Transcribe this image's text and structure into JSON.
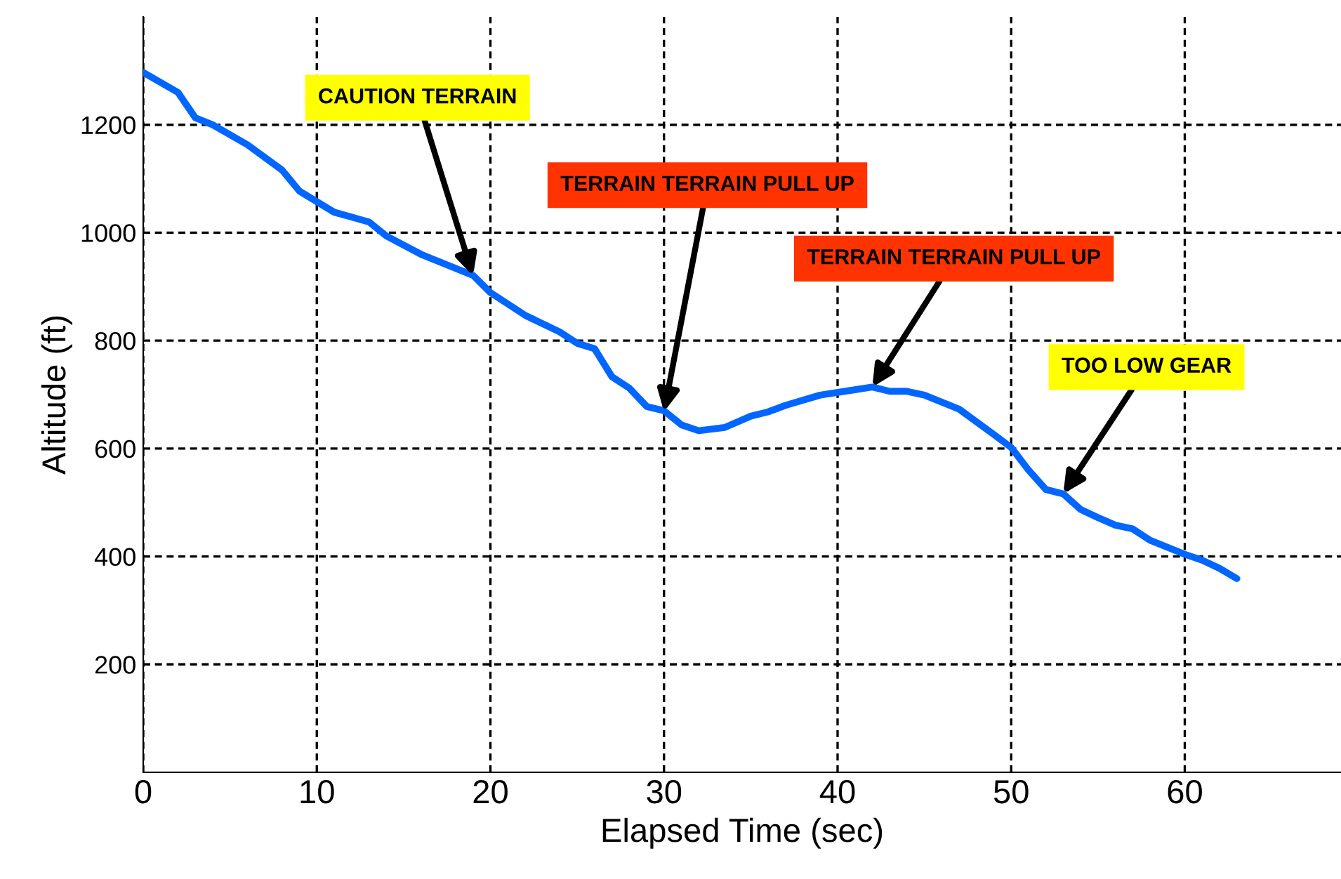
{
  "chart_data": {
    "type": "line",
    "xlabel": "Elapsed Time (sec)",
    "ylabel": "Altitude (ft)",
    "x": [
      0,
      2,
      3,
      4,
      6,
      8,
      9,
      11,
      13,
      14,
      16,
      19,
      20,
      22,
      24,
      25,
      26,
      27,
      28,
      29,
      30,
      31,
      32,
      33.5,
      35,
      36,
      37,
      39,
      41,
      42,
      43,
      44,
      45,
      47,
      49,
      50,
      51,
      52,
      53,
      54,
      55,
      56,
      57,
      58,
      59,
      60,
      61,
      62,
      63
    ],
    "series": [
      {
        "color": "#0066ff",
        "values": [
          1297,
          1260,
          1213,
          1200,
          1163,
          1116,
          1077,
          1038,
          1020,
          994,
          960,
          921,
          889,
          847,
          816,
          795,
          785,
          733,
          712,
          678,
          670,
          644,
          633,
          639,
          660,
          668,
          680,
          699,
          709,
          714,
          706,
          706,
          699,
          673,
          626,
          602,
          560,
          524,
          516,
          487,
          472,
          458,
          451,
          430,
          417,
          404,
          393,
          378,
          359
        ]
      }
    ],
    "annotations": [
      {
        "text": "CAUTION TERRAIN",
        "x": 19,
        "y": 920
      },
      {
        "text": "TERRAIN TERRAIN PULL UP",
        "x": 30,
        "y": 668
      },
      {
        "text": "TERRAIN TERRAIN PULL UP",
        "x": 42,
        "y": 714
      },
      {
        "text": "TOO LOW GEAR",
        "x": 53,
        "y": 516
      }
    ],
    "xlim": [
      0,
      69
    ],
    "ylim": [
      0,
      1400
    ],
    "xticks": [
      0,
      10,
      20,
      30,
      40,
      50,
      60
    ],
    "yticks": [
      200,
      400,
      600,
      800,
      1000,
      1200
    ],
    "grid": true,
    "line_style": "solid",
    "marker": "none",
    "legend": false
  }
}
